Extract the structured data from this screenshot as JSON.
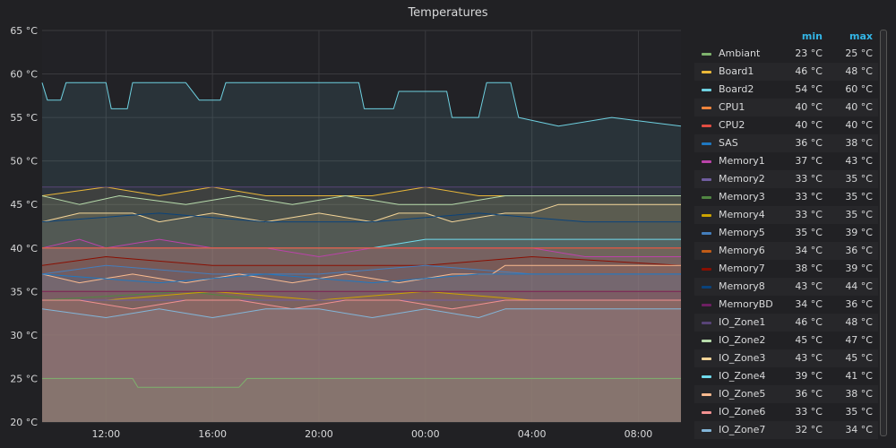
{
  "chart_data": {
    "type": "area",
    "title": "Temperatures",
    "xlabel": "",
    "ylabel": "",
    "x_ticks": [
      "12:00",
      "16:00",
      "20:00",
      "00:00",
      "04:00",
      "08:00"
    ],
    "x_tick_hours": [
      12,
      16,
      20,
      24,
      28,
      32
    ],
    "x_range_hours": [
      9.6,
      33.6
    ],
    "y_ticks": [
      "20 °C",
      "25 °C",
      "30 °C",
      "35 °C",
      "40 °C",
      "45 °C",
      "50 °C",
      "55 °C",
      "60 °C",
      "65 °C"
    ],
    "ylim": [
      20,
      65
    ],
    "grid": true,
    "legend_placement": "right",
    "legend_columns": [
      "min",
      "max"
    ],
    "series": [
      {
        "name": "Ambiant",
        "color": "#7eb26d",
        "min": "23 °C",
        "max": "25 °C",
        "points": [
          [
            9.6,
            25
          ],
          [
            13,
            25
          ],
          [
            13.2,
            24
          ],
          [
            17,
            24
          ],
          [
            17.3,
            25
          ],
          [
            33.6,
            25
          ]
        ]
      },
      {
        "name": "Board1",
        "color": "#eab839",
        "min": "46 °C",
        "max": "48 °C",
        "points": [
          [
            9.6,
            46
          ],
          [
            12,
            47
          ],
          [
            14,
            46
          ],
          [
            16,
            47
          ],
          [
            18,
            46
          ],
          [
            20,
            46
          ],
          [
            22,
            46
          ],
          [
            24,
            47
          ],
          [
            26,
            46
          ],
          [
            28,
            46
          ],
          [
            30,
            46
          ],
          [
            32,
            46
          ],
          [
            33.6,
            46
          ]
        ]
      },
      {
        "name": "Board2",
        "color": "#6ed0e0",
        "min": "54 °C",
        "max": "60 °C",
        "points": [
          [
            9.6,
            59
          ],
          [
            9.8,
            57
          ],
          [
            10.3,
            57
          ],
          [
            10.5,
            59
          ],
          [
            11.5,
            59
          ],
          [
            12,
            59
          ],
          [
            12.2,
            56
          ],
          [
            12.8,
            56
          ],
          [
            13,
            59
          ],
          [
            14,
            59
          ],
          [
            15,
            59
          ],
          [
            15.5,
            57
          ],
          [
            16.3,
            57
          ],
          [
            16.5,
            59
          ],
          [
            18,
            59
          ],
          [
            19,
            59
          ],
          [
            21,
            59
          ],
          [
            21.5,
            59
          ],
          [
            21.7,
            56
          ],
          [
            22.8,
            56
          ],
          [
            23,
            58
          ],
          [
            24,
            58
          ],
          [
            24.8,
            58
          ],
          [
            25,
            55
          ],
          [
            26,
            55
          ],
          [
            26.3,
            59
          ],
          [
            27.2,
            59
          ],
          [
            27.5,
            55
          ],
          [
            29,
            54
          ],
          [
            31,
            55
          ],
          [
            33.6,
            54
          ]
        ]
      },
      {
        "name": "CPU1",
        "color": "#ef843c",
        "min": "40 °C",
        "max": "40 °C",
        "points": [
          [
            9.6,
            40
          ],
          [
            33.6,
            40
          ]
        ]
      },
      {
        "name": "CPU2",
        "color": "#e24d42",
        "min": "40 °C",
        "max": "40 °C",
        "points": [
          [
            9.6,
            40
          ],
          [
            33.6,
            40
          ]
        ]
      },
      {
        "name": "SAS",
        "color": "#1f78c1",
        "min": "36 °C",
        "max": "38 °C",
        "points": [
          [
            9.6,
            37
          ],
          [
            14,
            36
          ],
          [
            18,
            37
          ],
          [
            22,
            36
          ],
          [
            26,
            37
          ],
          [
            30,
            37
          ],
          [
            33.6,
            37
          ]
        ]
      },
      {
        "name": "Memory1",
        "color": "#ba43a9",
        "min": "37 °C",
        "max": "43 °C",
        "points": [
          [
            9.6,
            40
          ],
          [
            11,
            41
          ],
          [
            12,
            40
          ],
          [
            14,
            41
          ],
          [
            16,
            40
          ],
          [
            18,
            40
          ],
          [
            20,
            39
          ],
          [
            22,
            40
          ],
          [
            24,
            40
          ],
          [
            26,
            40
          ],
          [
            28,
            40
          ],
          [
            30,
            39
          ],
          [
            33.6,
            39
          ]
        ]
      },
      {
        "name": "Memory2",
        "color": "#705da0",
        "min": "33 °C",
        "max": "35 °C",
        "points": [
          [
            9.6,
            34
          ],
          [
            14,
            34
          ],
          [
            18,
            34
          ],
          [
            22,
            34
          ],
          [
            26,
            34
          ],
          [
            30,
            34
          ],
          [
            33.6,
            34
          ]
        ]
      },
      {
        "name": "Memory3",
        "color": "#508642",
        "min": "33 °C",
        "max": "35 °C",
        "points": [
          [
            9.6,
            34
          ],
          [
            15,
            35
          ],
          [
            18,
            34
          ],
          [
            24,
            34
          ],
          [
            28,
            34
          ],
          [
            33.6,
            34
          ]
        ]
      },
      {
        "name": "Memory4",
        "color": "#cca300",
        "min": "33 °C",
        "max": "35 °C",
        "points": [
          [
            9.6,
            34
          ],
          [
            12,
            34
          ],
          [
            16,
            35
          ],
          [
            20,
            34
          ],
          [
            24,
            35
          ],
          [
            28,
            34
          ],
          [
            33.6,
            34
          ]
        ]
      },
      {
        "name": "Memory5",
        "color": "#447ebc",
        "min": "35 °C",
        "max": "39 °C",
        "points": [
          [
            9.6,
            37
          ],
          [
            12,
            38
          ],
          [
            16,
            37
          ],
          [
            20,
            37
          ],
          [
            24,
            38
          ],
          [
            28,
            37
          ],
          [
            33.6,
            37
          ]
        ]
      },
      {
        "name": "Memory6",
        "color": "#c15c17",
        "min": "34 °C",
        "max": "36 °C",
        "points": [
          [
            9.6,
            35
          ],
          [
            14,
            35
          ],
          [
            18,
            35
          ],
          [
            22,
            35
          ],
          [
            26,
            35
          ],
          [
            30,
            35
          ],
          [
            33.6,
            35
          ]
        ]
      },
      {
        "name": "Memory7",
        "color": "#890f02",
        "min": "38 °C",
        "max": "39 °C",
        "points": [
          [
            9.6,
            38
          ],
          [
            12,
            39
          ],
          [
            16,
            38
          ],
          [
            20,
            38
          ],
          [
            24,
            38
          ],
          [
            28,
            39
          ],
          [
            33.6,
            38
          ]
        ]
      },
      {
        "name": "Memory8",
        "color": "#0a437c",
        "min": "43 °C",
        "max": "44 °C",
        "points": [
          [
            9.6,
            43
          ],
          [
            14,
            44
          ],
          [
            18,
            43
          ],
          [
            22,
            43
          ],
          [
            26,
            44
          ],
          [
            30,
            43
          ],
          [
            33.6,
            43
          ]
        ]
      },
      {
        "name": "MemoryBD",
        "color": "#6d1f62",
        "min": "34 °C",
        "max": "36 °C",
        "points": [
          [
            9.6,
            35
          ],
          [
            14,
            35
          ],
          [
            18,
            35
          ],
          [
            22,
            35
          ],
          [
            26,
            35
          ],
          [
            30,
            35
          ],
          [
            33.6,
            35
          ]
        ]
      },
      {
        "name": "IO_Zone1",
        "color": "#584477",
        "min": "46 °C",
        "max": "48 °C",
        "points": [
          [
            9.6,
            47
          ],
          [
            33.6,
            47
          ]
        ]
      },
      {
        "name": "IO_Zone2",
        "color": "#b7dbab",
        "min": "45 °C",
        "max": "47 °C",
        "points": [
          [
            9.6,
            46
          ],
          [
            11,
            45
          ],
          [
            12.5,
            46
          ],
          [
            15,
            45
          ],
          [
            17,
            46
          ],
          [
            19,
            45
          ],
          [
            21,
            46
          ],
          [
            23,
            45
          ],
          [
            25,
            45
          ],
          [
            27,
            46
          ],
          [
            29,
            46
          ],
          [
            31,
            46
          ],
          [
            33.6,
            46
          ]
        ]
      },
      {
        "name": "IO_Zone3",
        "color": "#f4d598",
        "min": "43 °C",
        "max": "45 °C",
        "points": [
          [
            9.6,
            43
          ],
          [
            11,
            44
          ],
          [
            13,
            44
          ],
          [
            14,
            43
          ],
          [
            16,
            44
          ],
          [
            18,
            43
          ],
          [
            20,
            44
          ],
          [
            22,
            43
          ],
          [
            23,
            44
          ],
          [
            24,
            44
          ],
          [
            25,
            43
          ],
          [
            27,
            44
          ],
          [
            28,
            44
          ],
          [
            29,
            45
          ],
          [
            33.6,
            45
          ]
        ]
      },
      {
        "name": "IO_Zone4",
        "color": "#70dbed",
        "min": "39 °C",
        "max": "41 °C",
        "points": [
          [
            9.6,
            40
          ],
          [
            12,
            40
          ],
          [
            16,
            40
          ],
          [
            20,
            40
          ],
          [
            22,
            40
          ],
          [
            24,
            41
          ],
          [
            28,
            41
          ],
          [
            30,
            41
          ],
          [
            33.6,
            41
          ]
        ]
      },
      {
        "name": "IO_Zone5",
        "color": "#f9ba8f",
        "min": "36 °C",
        "max": "38 °C",
        "points": [
          [
            9.6,
            37
          ],
          [
            11,
            36
          ],
          [
            13,
            37
          ],
          [
            15,
            36
          ],
          [
            17,
            37
          ],
          [
            19,
            36
          ],
          [
            21,
            37
          ],
          [
            23,
            36
          ],
          [
            25,
            37
          ],
          [
            26.5,
            37
          ],
          [
            27,
            38
          ],
          [
            33.6,
            38
          ]
        ]
      },
      {
        "name": "IO_Zone6",
        "color": "#f29191",
        "min": "33 °C",
        "max": "35 °C",
        "points": [
          [
            9.6,
            34
          ],
          [
            11,
            34
          ],
          [
            13,
            33
          ],
          [
            15,
            34
          ],
          [
            17,
            34
          ],
          [
            19,
            33
          ],
          [
            21,
            34
          ],
          [
            23,
            34
          ],
          [
            25,
            33
          ],
          [
            27,
            34
          ],
          [
            29,
            34
          ],
          [
            33.6,
            34
          ]
        ]
      },
      {
        "name": "IO_Zone7",
        "color": "#82b5d8",
        "min": "32 °C",
        "max": "34 °C",
        "points": [
          [
            9.6,
            33
          ],
          [
            12,
            32
          ],
          [
            14,
            33
          ],
          [
            16,
            32
          ],
          [
            18,
            33
          ],
          [
            20,
            33
          ],
          [
            22,
            32
          ],
          [
            24,
            33
          ],
          [
            26,
            32
          ],
          [
            27,
            33
          ],
          [
            33.6,
            33
          ]
        ]
      }
    ]
  }
}
